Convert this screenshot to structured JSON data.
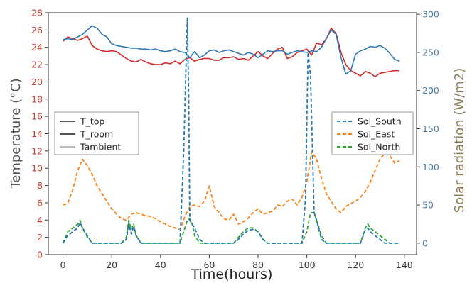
{
  "chart_data": {
    "type": "line",
    "xlabel": "Time(hours)",
    "ylabel_left": "Temperature (°C)",
    "ylabel_right": "Solar radiation (W/m2)",
    "xlim": [
      -6,
      145
    ],
    "ylim_left": [
      0,
      28
    ],
    "ylim_right": [
      -15,
      302
    ],
    "x_ticks": [
      0,
      20,
      40,
      60,
      80,
      100,
      120,
      140
    ],
    "y_ticks_left": [
      0,
      2,
      4,
      6,
      8,
      10,
      12,
      14,
      16,
      18,
      20,
      22,
      24,
      26,
      28
    ],
    "y_ticks_right": [
      0,
      50,
      100,
      150,
      200,
      250,
      300
    ],
    "grid": false,
    "colors": {
      "left_axis": "#c0392b",
      "right_axis": "#4a7ba6",
      "right_label": "#8a7a55",
      "T_top": "#2f77b4",
      "T_room": "#d62728",
      "Sol_South": "#1f77b4",
      "Sol_East": "#ff7f0e",
      "Sol_North": "#2ca02c"
    },
    "legend_left": {
      "placement": "center-left",
      "entries": [
        "T_top",
        "T_room",
        "Tambient"
      ]
    },
    "legend_right": {
      "placement": "center-right",
      "entries": [
        "Sol_South",
        "Sol_East",
        "Sol_North"
      ]
    },
    "series": [
      {
        "name": "T_top",
        "axis": "left",
        "style": "solid",
        "x": [
          0,
          2,
          4,
          6,
          8,
          10,
          12,
          14,
          16,
          18,
          20,
          22,
          24,
          26,
          28,
          30,
          32,
          34,
          36,
          38,
          40,
          42,
          44,
          46,
          48,
          50,
          52,
          54,
          56,
          58,
          60,
          62,
          64,
          66,
          68,
          70,
          72,
          74,
          76,
          78,
          80,
          82,
          84,
          86,
          88,
          90,
          92,
          94,
          96,
          98,
          100,
          102,
          104,
          106,
          108,
          110,
          112,
          114,
          116,
          118,
          120,
          122,
          124,
          126,
          128,
          130,
          132,
          134,
          136,
          138
        ],
        "y": [
          24.9,
          25,
          24.9,
          25.2,
          25.5,
          26,
          26.5,
          26.2,
          25.5,
          25.2,
          24.4,
          24.2,
          24.1,
          24,
          23.9,
          23.9,
          23.8,
          23.8,
          23.7,
          23.8,
          23.6,
          23.5,
          23.6,
          23.8,
          23.5,
          23.4,
          22.8,
          23.5,
          22.8,
          23.1,
          23.6,
          23.7,
          23.4,
          23.6,
          23.7,
          23.5,
          23.3,
          23.1,
          23.4,
          23.2,
          22.8,
          23.2,
          23.6,
          23.5,
          23.6,
          23.6,
          23.2,
          23.4,
          23.6,
          23.5,
          23.4,
          23.6,
          23.5,
          24,
          25,
          26,
          25.5,
          22.8,
          20.9,
          21.3,
          23.2,
          23.6,
          23.8,
          24.1,
          24,
          24.2,
          23.9,
          23.3,
          22.6,
          22.4
        ]
      },
      {
        "name": "T_room",
        "axis": "left",
        "style": "solid",
        "x": [
          0,
          2,
          4,
          6,
          8,
          10,
          12,
          14,
          16,
          18,
          20,
          22,
          24,
          26,
          28,
          30,
          32,
          34,
          36,
          38,
          40,
          42,
          44,
          46,
          48,
          50,
          52,
          54,
          56,
          58,
          60,
          62,
          64,
          66,
          68,
          70,
          72,
          74,
          76,
          78,
          80,
          82,
          84,
          86,
          88,
          90,
          92,
          94,
          96,
          98,
          100,
          102,
          104,
          106,
          108,
          110,
          112,
          114,
          116,
          118,
          120,
          122,
          124,
          126,
          128,
          130,
          132,
          134,
          136,
          138
        ],
        "y": [
          24.7,
          25.2,
          25,
          24.8,
          25,
          25.3,
          24.2,
          23.8,
          23.6,
          23.5,
          23.6,
          23.5,
          23.1,
          22.7,
          22.4,
          22.3,
          22.6,
          22.3,
          22.1,
          22.0,
          22.0,
          22.2,
          22.1,
          22.4,
          22.1,
          22.6,
          22.8,
          22.4,
          22.6,
          22.7,
          22.7,
          22.5,
          22.5,
          22.8,
          22.8,
          22.9,
          22.6,
          22.7,
          22.5,
          23.0,
          23.5,
          23.0,
          22.7,
          23.3,
          23.8,
          24.0,
          22.7,
          22.9,
          23.4,
          23.6,
          23.8,
          23.1,
          24.5,
          24.3,
          25,
          26.2,
          25.6,
          23.4,
          22.0,
          21.3,
          21.0,
          20.7,
          21.2,
          21.0,
          20.6,
          21.0,
          21.1,
          21.2,
          21.3,
          21.3
        ]
      },
      {
        "name": "Sol_South",
        "axis": "right",
        "style": "dashed",
        "x": [
          0,
          2,
          4,
          6,
          7,
          8,
          10,
          12,
          14,
          16,
          18,
          20,
          22,
          24,
          26,
          27,
          28,
          29,
          30,
          31,
          32,
          34,
          36,
          38,
          40,
          42,
          44,
          46,
          48,
          49.5,
          51,
          51.5,
          52,
          54,
          56,
          58,
          60,
          62,
          64,
          66,
          68,
          70,
          72,
          74,
          76,
          78,
          80,
          82,
          84,
          86,
          88,
          90,
          92,
          94,
          96,
          98,
          99.5,
          100.5,
          101.5,
          103,
          104,
          106,
          108,
          110,
          112,
          114,
          116,
          118,
          120,
          122,
          124,
          125,
          126,
          128,
          130,
          132,
          134,
          136,
          138
        ],
        "y": [
          0,
          10,
          15,
          20,
          27,
          20,
          10,
          0,
          0,
          0,
          0,
          0,
          0,
          0,
          5,
          27,
          12,
          22,
          10,
          5,
          0,
          0,
          0,
          0,
          0,
          0,
          0,
          0,
          0,
          120,
          295,
          200,
          30,
          20,
          5,
          0,
          0,
          0,
          0,
          0,
          0,
          0,
          5,
          12,
          17,
          18,
          15,
          5,
          0,
          0,
          0,
          0,
          0,
          0,
          0,
          0,
          60,
          250,
          220,
          40,
          30,
          5,
          0,
          0,
          0,
          0,
          0,
          0,
          0,
          0,
          18,
          20,
          15,
          10,
          5,
          0,
          0,
          0,
          0
        ]
      },
      {
        "name": "Sol_East",
        "axis": "right",
        "style": "dashed",
        "x": [
          0,
          2,
          4,
          6,
          8,
          10,
          12,
          14,
          16,
          18,
          20,
          22,
          24,
          26,
          28,
          30,
          32,
          34,
          36,
          38,
          40,
          42,
          44,
          46,
          48,
          50,
          52,
          54,
          56,
          58,
          60,
          62,
          64,
          66,
          68,
          70,
          72,
          74,
          76,
          78,
          80,
          82,
          84,
          86,
          88,
          90,
          92,
          94,
          96,
          98,
          100,
          102,
          104,
          106,
          108,
          110,
          112,
          114,
          116,
          118,
          120,
          122,
          124,
          126,
          128,
          130,
          132,
          134,
          136,
          138
        ],
        "y": [
          50,
          52,
          70,
          95,
          110,
          102,
          90,
          75,
          65,
          55,
          45,
          38,
          32,
          30,
          38,
          40,
          38,
          36,
          35,
          32,
          28,
          25,
          22,
          20,
          18,
          35,
          48,
          50,
          48,
          55,
          75,
          48,
          40,
          32,
          30,
          38,
          25,
          28,
          33,
          40,
          45,
          38,
          40,
          42,
          50,
          48,
          55,
          58,
          50,
          60,
          80,
          120,
          110,
          85,
          65,
          55,
          45,
          40,
          48,
          52,
          55,
          60,
          68,
          80,
          95,
          110,
          118,
          115,
          105,
          108
        ]
      },
      {
        "name": "Sol_North",
        "axis": "right",
        "style": "dashed",
        "x": [
          0,
          2,
          4,
          6,
          7,
          8,
          10,
          12,
          14,
          16,
          18,
          20,
          22,
          24,
          26,
          27,
          28,
          29,
          30,
          31,
          32,
          34,
          36,
          38,
          40,
          42,
          44,
          46,
          48,
          49.5,
          51,
          52,
          53,
          54,
          56,
          58,
          60,
          62,
          64,
          66,
          68,
          70,
          72,
          74,
          76,
          78,
          80,
          82,
          84,
          86,
          88,
          90,
          92,
          94,
          96,
          98,
          100,
          101.5,
          103,
          104,
          106,
          108,
          110,
          112,
          114,
          116,
          118,
          120,
          122,
          124,
          125,
          126,
          128,
          130,
          132,
          134,
          136,
          138
        ],
        "y": [
          0,
          15,
          20,
          25,
          30,
          20,
          8,
          0,
          0,
          0,
          0,
          0,
          0,
          0,
          8,
          30,
          18,
          25,
          10,
          5,
          0,
          0,
          0,
          0,
          0,
          0,
          0,
          0,
          0,
          15,
          30,
          32,
          25,
          10,
          0,
          0,
          0,
          0,
          0,
          0,
          0,
          0,
          8,
          15,
          20,
          20,
          15,
          5,
          0,
          0,
          0,
          0,
          0,
          0,
          0,
          0,
          15,
          40,
          40,
          30,
          10,
          0,
          0,
          0,
          0,
          0,
          0,
          0,
          0,
          20,
          25,
          20,
          15,
          10,
          5,
          0,
          0,
          0
        ]
      }
    ]
  }
}
